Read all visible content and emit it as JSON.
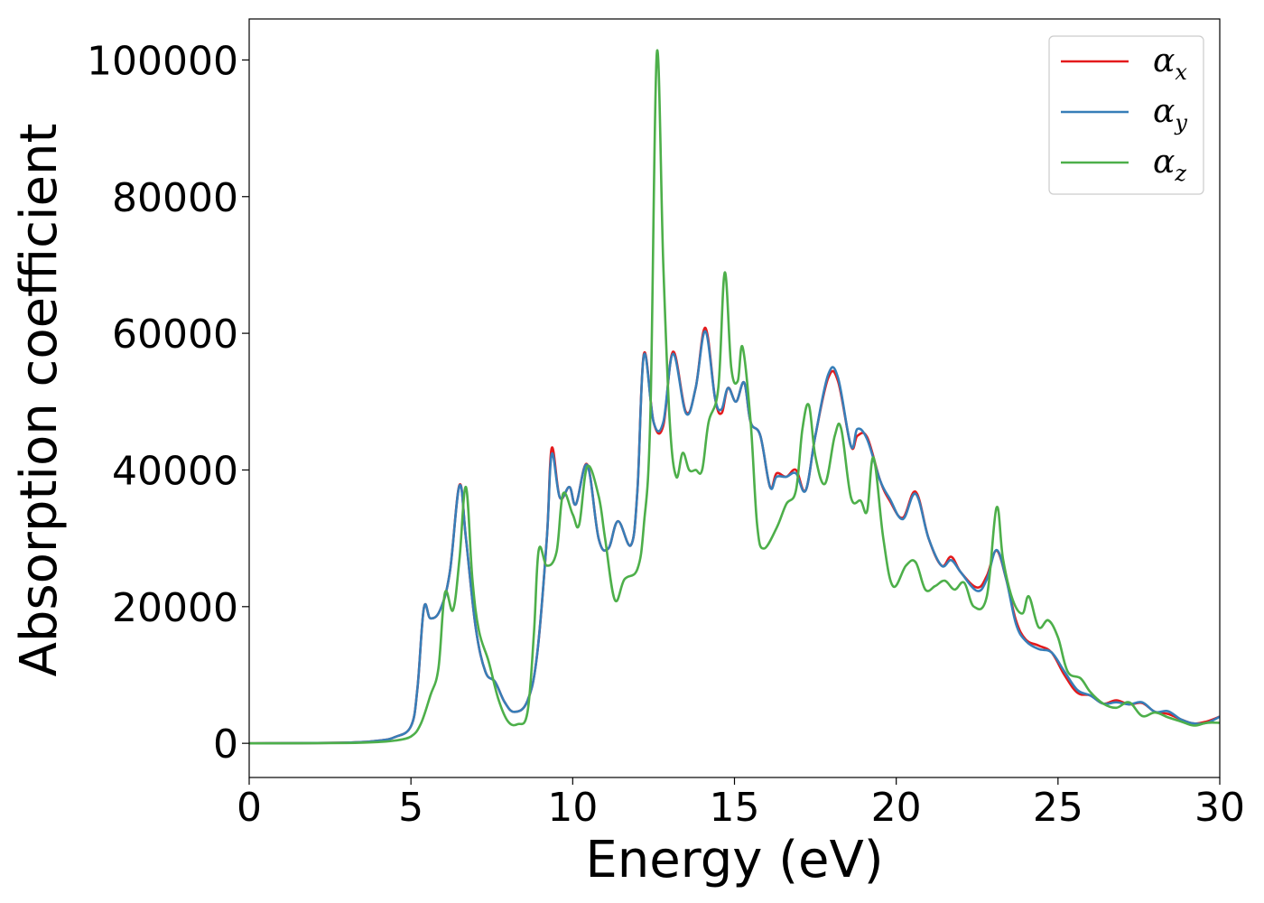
{
  "chart_data": {
    "type": "line",
    "xlabel": "Energy (eV)",
    "ylabel": "Absorption coefficient",
    "xlim": [
      0,
      30
    ],
    "ylim": [
      -5000,
      106000
    ],
    "xticks": [
      0,
      5,
      10,
      15,
      20,
      25,
      30
    ],
    "xtick_labels": [
      "0",
      "5",
      "10",
      "15",
      "20",
      "25",
      "30"
    ],
    "yticks": [
      0,
      20000,
      40000,
      60000,
      80000,
      100000
    ],
    "ytick_labels": [
      "0",
      "20000",
      "40000",
      "60000",
      "80000",
      "100000"
    ],
    "grid": false,
    "legend_position": "upper right",
    "series": [
      {
        "name": "α",
        "subscript": "x",
        "color": "#e41a1c",
        "points": [
          [
            0,
            0
          ],
          [
            3,
            100
          ],
          [
            4,
            400
          ],
          [
            4.5,
            900
          ],
          [
            5,
            2500
          ],
          [
            5.2,
            8000
          ],
          [
            5.4,
            19800
          ],
          [
            5.6,
            18300
          ],
          [
            5.9,
            19500
          ],
          [
            6.2,
            25000
          ],
          [
            6.5,
            37800
          ],
          [
            6.7,
            30000
          ],
          [
            7,
            17000
          ],
          [
            7.3,
            10500
          ],
          [
            7.6,
            9000
          ],
          [
            7.9,
            6000
          ],
          [
            8.2,
            4600
          ],
          [
            8.6,
            6200
          ],
          [
            8.9,
            13000
          ],
          [
            9.2,
            30000
          ],
          [
            9.35,
            43200
          ],
          [
            9.6,
            36000
          ],
          [
            9.9,
            37500
          ],
          [
            10.1,
            35000
          ],
          [
            10.45,
            40800
          ],
          [
            10.8,
            30000
          ],
          [
            11.1,
            28500
          ],
          [
            11.4,
            32500
          ],
          [
            11.8,
            29000
          ],
          [
            12.0,
            37000
          ],
          [
            12.2,
            57000
          ],
          [
            12.5,
            47000
          ],
          [
            12.8,
            46500
          ],
          [
            13.1,
            57300
          ],
          [
            13.5,
            48500
          ],
          [
            13.8,
            52000
          ],
          [
            14.1,
            60800
          ],
          [
            14.4,
            50500
          ],
          [
            14.6,
            48300
          ],
          [
            14.8,
            52000
          ],
          [
            15.05,
            50000
          ],
          [
            15.3,
            52800
          ],
          [
            15.5,
            47000
          ],
          [
            15.8,
            45000
          ],
          [
            16.1,
            37500
          ],
          [
            16.3,
            39500
          ],
          [
            16.6,
            39000
          ],
          [
            16.9,
            40000
          ],
          [
            17.2,
            37000
          ],
          [
            17.5,
            45000
          ],
          [
            17.9,
            53500
          ],
          [
            18.2,
            53000
          ],
          [
            18.6,
            43500
          ],
          [
            18.8,
            45000
          ],
          [
            19.1,
            44800
          ],
          [
            19.5,
            38500
          ],
          [
            19.8,
            35500
          ],
          [
            20.2,
            33000
          ],
          [
            20.6,
            36800
          ],
          [
            21.0,
            30000
          ],
          [
            21.4,
            26000
          ],
          [
            21.7,
            27300
          ],
          [
            22.0,
            25000
          ],
          [
            22.5,
            22800
          ],
          [
            22.8,
            24500
          ],
          [
            23.1,
            28200
          ],
          [
            23.4,
            24000
          ],
          [
            23.7,
            18000
          ],
          [
            24.0,
            15200
          ],
          [
            24.4,
            14300
          ],
          [
            24.8,
            13300
          ],
          [
            25.2,
            10000
          ],
          [
            25.6,
            7400
          ],
          [
            26.0,
            7000
          ],
          [
            26.4,
            5800
          ],
          [
            26.8,
            6300
          ],
          [
            27.2,
            5700
          ],
          [
            27.6,
            5900
          ],
          [
            28.0,
            4600
          ],
          [
            28.4,
            4300
          ],
          [
            28.8,
            3500
          ],
          [
            29.2,
            2900
          ],
          [
            29.6,
            3200
          ],
          [
            30,
            3900
          ]
        ]
      },
      {
        "name": "α",
        "subscript": "y",
        "color": "#377eb8",
        "points": [
          [
            0,
            0
          ],
          [
            3,
            100
          ],
          [
            4,
            400
          ],
          [
            4.5,
            900
          ],
          [
            5,
            2500
          ],
          [
            5.2,
            8000
          ],
          [
            5.4,
            19800
          ],
          [
            5.6,
            18300
          ],
          [
            5.9,
            19500
          ],
          [
            6.2,
            25000
          ],
          [
            6.5,
            37700
          ],
          [
            6.7,
            30000
          ],
          [
            7,
            17000
          ],
          [
            7.3,
            10500
          ],
          [
            7.6,
            9000
          ],
          [
            7.9,
            6000
          ],
          [
            8.2,
            4600
          ],
          [
            8.6,
            6200
          ],
          [
            8.9,
            13000
          ],
          [
            9.2,
            30000
          ],
          [
            9.35,
            42300
          ],
          [
            9.6,
            36000
          ],
          [
            9.9,
            37500
          ],
          [
            10.1,
            35000
          ],
          [
            10.45,
            40700
          ],
          [
            10.8,
            30000
          ],
          [
            11.1,
            28500
          ],
          [
            11.4,
            32500
          ],
          [
            11.8,
            29000
          ],
          [
            12.0,
            37000
          ],
          [
            12.2,
            56800
          ],
          [
            12.5,
            47000
          ],
          [
            12.8,
            47000
          ],
          [
            13.1,
            57000
          ],
          [
            13.5,
            48300
          ],
          [
            13.8,
            52000
          ],
          [
            14.1,
            60300
          ],
          [
            14.4,
            50500
          ],
          [
            14.6,
            48900
          ],
          [
            14.8,
            52000
          ],
          [
            15.05,
            50000
          ],
          [
            15.3,
            52800
          ],
          [
            15.5,
            47000
          ],
          [
            15.8,
            45000
          ],
          [
            16.1,
            37500
          ],
          [
            16.3,
            39000
          ],
          [
            16.6,
            39000
          ],
          [
            16.9,
            39500
          ],
          [
            17.2,
            37000
          ],
          [
            17.5,
            45000
          ],
          [
            17.9,
            54000
          ],
          [
            18.2,
            53500
          ],
          [
            18.6,
            43500
          ],
          [
            18.8,
            46000
          ],
          [
            19.1,
            44500
          ],
          [
            19.5,
            38500
          ],
          [
            19.8,
            35800
          ],
          [
            20.2,
            32800
          ],
          [
            20.6,
            36500
          ],
          [
            21.0,
            30000
          ],
          [
            21.4,
            26000
          ],
          [
            21.7,
            26800
          ],
          [
            22.0,
            25000
          ],
          [
            22.5,
            22300
          ],
          [
            22.8,
            24000
          ],
          [
            23.1,
            28300
          ],
          [
            23.4,
            24000
          ],
          [
            23.7,
            17500
          ],
          [
            24.0,
            15000
          ],
          [
            24.4,
            13800
          ],
          [
            24.8,
            13300
          ],
          [
            25.2,
            10500
          ],
          [
            25.6,
            7800
          ],
          [
            26.0,
            7000
          ],
          [
            26.4,
            5800
          ],
          [
            26.8,
            6000
          ],
          [
            27.2,
            5700
          ],
          [
            27.6,
            6000
          ],
          [
            28.0,
            4600
          ],
          [
            28.4,
            4700
          ],
          [
            28.8,
            3500
          ],
          [
            29.2,
            2900
          ],
          [
            29.6,
            3000
          ],
          [
            30,
            3900
          ]
        ]
      },
      {
        "name": "α",
        "subscript": "z",
        "color": "#4daf4a",
        "points": [
          [
            0,
            0
          ],
          [
            3,
            50
          ],
          [
            4,
            200
          ],
          [
            4.5,
            400
          ],
          [
            5,
            1000
          ],
          [
            5.3,
            2800
          ],
          [
            5.6,
            7000
          ],
          [
            5.85,
            11000
          ],
          [
            6.05,
            22000
          ],
          [
            6.3,
            19500
          ],
          [
            6.5,
            27000
          ],
          [
            6.7,
            37500
          ],
          [
            6.9,
            24000
          ],
          [
            7.1,
            16500
          ],
          [
            7.4,
            12000
          ],
          [
            7.7,
            6500
          ],
          [
            8.0,
            3200
          ],
          [
            8.3,
            2800
          ],
          [
            8.6,
            4500
          ],
          [
            8.8,
            16000
          ],
          [
            8.95,
            28300
          ],
          [
            9.2,
            26000
          ],
          [
            9.5,
            28000
          ],
          [
            9.7,
            36500
          ],
          [
            10.0,
            33500
          ],
          [
            10.2,
            32000
          ],
          [
            10.45,
            40500
          ],
          [
            10.8,
            36200
          ],
          [
            11.0,
            30000
          ],
          [
            11.3,
            21000
          ],
          [
            11.6,
            24000
          ],
          [
            12.0,
            25500
          ],
          [
            12.2,
            32000
          ],
          [
            12.4,
            48000
          ],
          [
            12.6,
            101000
          ],
          [
            12.8,
            70000
          ],
          [
            13.0,
            47000
          ],
          [
            13.2,
            39000
          ],
          [
            13.4,
            42500
          ],
          [
            13.6,
            40000
          ],
          [
            13.8,
            40000
          ],
          [
            14.0,
            40000
          ],
          [
            14.2,
            47000
          ],
          [
            14.5,
            52000
          ],
          [
            14.7,
            68900
          ],
          [
            14.9,
            55000
          ],
          [
            15.1,
            53000
          ],
          [
            15.25,
            58000
          ],
          [
            15.5,
            47000
          ],
          [
            15.7,
            32000
          ],
          [
            15.9,
            28500
          ],
          [
            16.3,
            31500
          ],
          [
            16.6,
            35000
          ],
          [
            16.9,
            37000
          ],
          [
            17.1,
            46000
          ],
          [
            17.3,
            49500
          ],
          [
            17.5,
            42000
          ],
          [
            17.8,
            38000
          ],
          [
            18.1,
            45000
          ],
          [
            18.3,
            46000
          ],
          [
            18.6,
            36000
          ],
          [
            18.9,
            35500
          ],
          [
            19.1,
            34000
          ],
          [
            19.3,
            41800
          ],
          [
            19.6,
            30000
          ],
          [
            19.9,
            23000
          ],
          [
            20.3,
            26000
          ],
          [
            20.6,
            26500
          ],
          [
            20.9,
            22500
          ],
          [
            21.2,
            23000
          ],
          [
            21.5,
            23800
          ],
          [
            21.8,
            22500
          ],
          [
            22.1,
            23500
          ],
          [
            22.4,
            20000
          ],
          [
            22.8,
            21500
          ],
          [
            23.1,
            34500
          ],
          [
            23.3,
            27000
          ],
          [
            23.6,
            21000
          ],
          [
            23.9,
            19000
          ],
          [
            24.1,
            21500
          ],
          [
            24.4,
            17000
          ],
          [
            24.7,
            18000
          ],
          [
            25.0,
            15500
          ],
          [
            25.3,
            10500
          ],
          [
            25.7,
            9500
          ],
          [
            26.0,
            7500
          ],
          [
            26.4,
            5800
          ],
          [
            26.8,
            5200
          ],
          [
            27.2,
            6000
          ],
          [
            27.6,
            4000
          ],
          [
            28.0,
            4500
          ],
          [
            28.4,
            3800
          ],
          [
            28.8,
            3200
          ],
          [
            29.2,
            2600
          ],
          [
            29.6,
            3000
          ],
          [
            30,
            3000
          ]
        ]
      }
    ]
  }
}
